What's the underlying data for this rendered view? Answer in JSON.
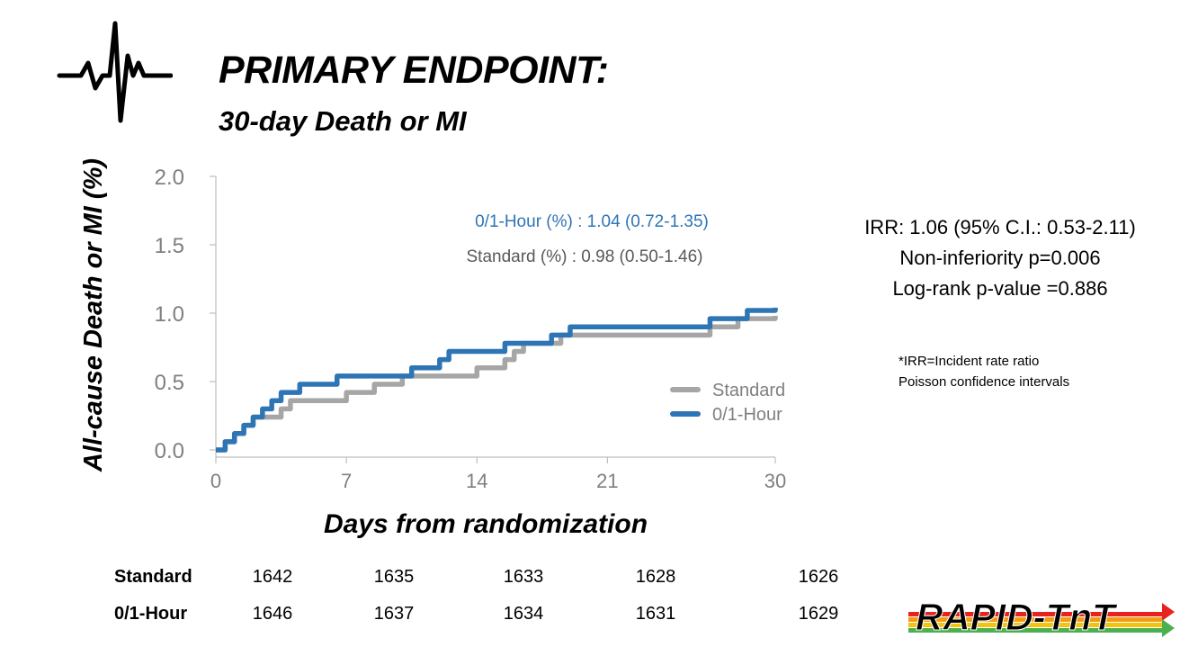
{
  "header": {
    "title": "PRIMARY ENDPOINT:",
    "subtitle": "30-day Death or MI"
  },
  "stats": {
    "irr": "IRR: 1.06 (95% C.I.: 0.53-2.11)",
    "noninferiority": "Non-inferiority p=0.006",
    "logrank": "Log-rank p-value =0.886"
  },
  "notes": {
    "line1": "*IRR=Incident rate ratio",
    "line2": "Poisson confidence intervals"
  },
  "logo": {
    "text": "RAPID-TnT",
    "colors": [
      "#e8231f",
      "#f39c12",
      "#f1c40f",
      "#4caf50"
    ]
  },
  "chart_data": {
    "type": "line",
    "xlabel": "Days from randomization",
    "ylabel": "All-cause Death or MI (%)",
    "xlim": [
      0,
      30
    ],
    "ylim": [
      0,
      2.0
    ],
    "xticks": [
      0,
      7,
      14,
      21,
      30
    ],
    "yticks": [
      0.0,
      0.5,
      1.0,
      1.5,
      2.0
    ],
    "ytick_labels": [
      "0.0",
      "0.5",
      "1.0",
      "1.5",
      "2.0"
    ],
    "annotations": [
      {
        "text": "0/1-Hour (%) : 1.04 (0.72-1.35)",
        "color": "#2e75b6"
      },
      {
        "text": "Standard (%) : 0.98 (0.50-1.46)",
        "color": "#595959"
      }
    ],
    "legend_position": "lower-right",
    "series": [
      {
        "name": "Standard",
        "color": "#a6a6a6",
        "steps": [
          [
            0,
            0
          ],
          [
            0.5,
            0.06
          ],
          [
            1,
            0.12
          ],
          [
            1.5,
            0.18
          ],
          [
            2,
            0.24
          ],
          [
            3.5,
            0.3
          ],
          [
            4,
            0.36
          ],
          [
            7,
            0.42
          ],
          [
            8.5,
            0.48
          ],
          [
            10,
            0.54
          ],
          [
            14,
            0.6
          ],
          [
            15.5,
            0.66
          ],
          [
            16,
            0.72
          ],
          [
            16.5,
            0.78
          ],
          [
            18.5,
            0.84
          ],
          [
            26.5,
            0.9
          ],
          [
            28,
            0.96
          ],
          [
            30,
            0.98
          ]
        ]
      },
      {
        "name": "0/1-Hour",
        "color": "#2e75b6",
        "steps": [
          [
            0,
            0
          ],
          [
            0.5,
            0.06
          ],
          [
            1,
            0.12
          ],
          [
            1.5,
            0.18
          ],
          [
            2,
            0.24
          ],
          [
            2.5,
            0.3
          ],
          [
            3,
            0.36
          ],
          [
            3.5,
            0.42
          ],
          [
            4.5,
            0.48
          ],
          [
            6.5,
            0.54
          ],
          [
            10.5,
            0.6
          ],
          [
            12,
            0.66
          ],
          [
            12.5,
            0.72
          ],
          [
            15.5,
            0.78
          ],
          [
            18,
            0.84
          ],
          [
            19,
            0.9
          ],
          [
            26.5,
            0.96
          ],
          [
            28.5,
            1.02
          ],
          [
            30,
            1.04
          ]
        ]
      }
    ]
  },
  "risk_table": {
    "rows": [
      {
        "label": "Standard",
        "values": [
          "1642",
          "1635",
          "1633",
          "1628",
          "1626"
        ]
      },
      {
        "label": "0/1-Hour",
        "values": [
          "1646",
          "1637",
          "1634",
          "1631",
          "1629"
        ]
      }
    ]
  }
}
